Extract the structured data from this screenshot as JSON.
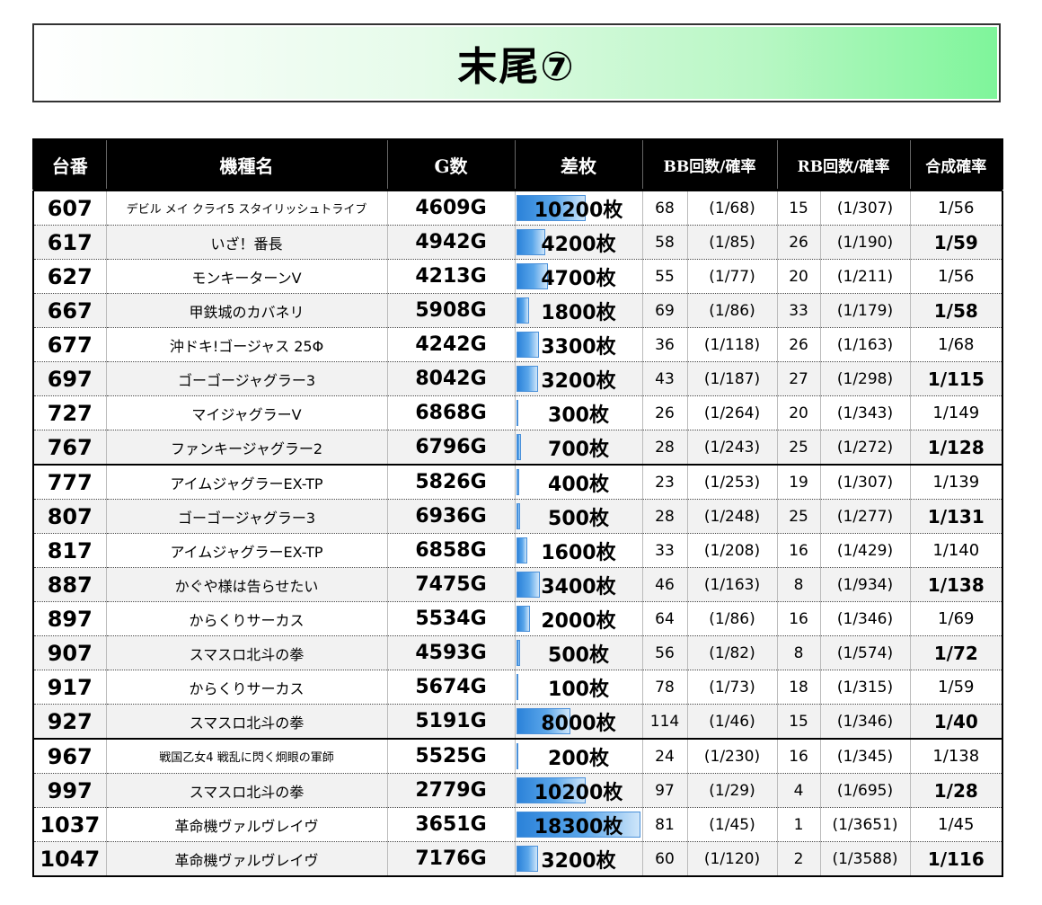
{
  "title": "末尾⑦",
  "headers": {
    "machine_no": "台番",
    "model": "機種名",
    "games": "G数",
    "diff": "差枚",
    "bb": "BB回数/確率",
    "rb": "RB回数/確率",
    "combined": "合成確率"
  },
  "diff_max": 18300,
  "rows": [
    {
      "no": "607",
      "name": "デビル メイ クライ5 スタイリッシュトライブ",
      "games": "4609G",
      "diff": "10200枚",
      "diff_value": 10200,
      "bb": "68",
      "bb_prob": "(1/68)",
      "rb": "15",
      "rb_prob": "(1/307)",
      "combined": "1/56"
    },
    {
      "no": "617",
      "name": "いざ！番長",
      "games": "4942G",
      "diff": "4200枚",
      "diff_value": 4200,
      "bb": "58",
      "bb_prob": "(1/85)",
      "rb": "26",
      "rb_prob": "(1/190)",
      "combined": "1/59"
    },
    {
      "no": "627",
      "name": "モンキーターンV",
      "games": "4213G",
      "diff": "4700枚",
      "diff_value": 4700,
      "bb": "55",
      "bb_prob": "(1/77)",
      "rb": "20",
      "rb_prob": "(1/211)",
      "combined": "1/56"
    },
    {
      "no": "667",
      "name": "甲鉄城のカバネリ",
      "games": "5908G",
      "diff": "1800枚",
      "diff_value": 1800,
      "bb": "69",
      "bb_prob": "(1/86)",
      "rb": "33",
      "rb_prob": "(1/179)",
      "combined": "1/58"
    },
    {
      "no": "677",
      "name": "沖ドキ!ゴージャス 25Φ",
      "games": "4242G",
      "diff": "3300枚",
      "diff_value": 3300,
      "bb": "36",
      "bb_prob": "(1/118)",
      "rb": "26",
      "rb_prob": "(1/163)",
      "combined": "1/68"
    },
    {
      "no": "697",
      "name": "ゴーゴージャグラー3",
      "games": "8042G",
      "diff": "3200枚",
      "diff_value": 3200,
      "bb": "43",
      "bb_prob": "(1/187)",
      "rb": "27",
      "rb_prob": "(1/298)",
      "combined": "1/115"
    },
    {
      "no": "727",
      "name": "マイジャグラーV",
      "games": "6868G",
      "diff": "300枚",
      "diff_value": 300,
      "bb": "26",
      "bb_prob": "(1/264)",
      "rb": "20",
      "rb_prob": "(1/343)",
      "combined": "1/149"
    },
    {
      "no": "767",
      "name": "ファンキージャグラー2",
      "games": "6796G",
      "diff": "700枚",
      "diff_value": 700,
      "bb": "28",
      "bb_prob": "(1/243)",
      "rb": "25",
      "rb_prob": "(1/272)",
      "combined": "1/128"
    },
    {
      "no": "777",
      "name": "アイムジャグラーEX-TP",
      "games": "5826G",
      "diff": "400枚",
      "diff_value": 400,
      "bb": "23",
      "bb_prob": "(1/253)",
      "rb": "19",
      "rb_prob": "(1/307)",
      "combined": "1/139"
    },
    {
      "no": "807",
      "name": "ゴーゴージャグラー3",
      "games": "6936G",
      "diff": "500枚",
      "diff_value": 500,
      "bb": "28",
      "bb_prob": "(1/248)",
      "rb": "25",
      "rb_prob": "(1/277)",
      "combined": "1/131"
    },
    {
      "no": "817",
      "name": "アイムジャグラーEX-TP",
      "games": "6858G",
      "diff": "1600枚",
      "diff_value": 1600,
      "bb": "33",
      "bb_prob": "(1/208)",
      "rb": "16",
      "rb_prob": "(1/429)",
      "combined": "1/140"
    },
    {
      "no": "887",
      "name": "かぐや様は告らせたい",
      "games": "7475G",
      "diff": "3400枚",
      "diff_value": 3400,
      "bb": "46",
      "bb_prob": "(1/163)",
      "rb": "8",
      "rb_prob": "(1/934)",
      "combined": "1/138"
    },
    {
      "no": "897",
      "name": "からくりサーカス",
      "games": "5534G",
      "diff": "2000枚",
      "diff_value": 2000,
      "bb": "64",
      "bb_prob": "(1/86)",
      "rb": "16",
      "rb_prob": "(1/346)",
      "combined": "1/69"
    },
    {
      "no": "907",
      "name": "スマスロ北斗の拳",
      "games": "4593G",
      "diff": "500枚",
      "diff_value": 500,
      "bb": "56",
      "bb_prob": "(1/82)",
      "rb": "8",
      "rb_prob": "(1/574)",
      "combined": "1/72"
    },
    {
      "no": "917",
      "name": "からくりサーカス",
      "games": "5674G",
      "diff": "100枚",
      "diff_value": 100,
      "bb": "78",
      "bb_prob": "(1/73)",
      "rb": "18",
      "rb_prob": "(1/315)",
      "combined": "1/59"
    },
    {
      "no": "927",
      "name": "スマスロ北斗の拳",
      "games": "5191G",
      "diff": "8000枚",
      "diff_value": 8000,
      "bb": "114",
      "bb_prob": "(1/46)",
      "rb": "15",
      "rb_prob": "(1/346)",
      "combined": "1/40"
    },
    {
      "no": "967",
      "name": "戦国乙女4 戦乱に閃く炯眼の軍師",
      "games": "5525G",
      "diff": "200枚",
      "diff_value": 200,
      "bb": "24",
      "bb_prob": "(1/230)",
      "rb": "16",
      "rb_prob": "(1/345)",
      "combined": "1/138"
    },
    {
      "no": "997",
      "name": "スマスロ北斗の拳",
      "games": "2779G",
      "diff": "10200枚",
      "diff_value": 10200,
      "bb": "97",
      "bb_prob": "(1/29)",
      "rb": "4",
      "rb_prob": "(1/695)",
      "combined": "1/28"
    },
    {
      "no": "1037",
      "name": "革命機ヴァルヴレイヴ",
      "games": "3651G",
      "diff": "18300枚",
      "diff_value": 18300,
      "bb": "81",
      "bb_prob": "(1/45)",
      "rb": "1",
      "rb_prob": "(1/3651)",
      "combined": "1/45"
    },
    {
      "no": "1047",
      "name": "革命機ヴァルヴレイヴ",
      "games": "7176G",
      "diff": "3200枚",
      "diff_value": 3200,
      "bb": "60",
      "bb_prob": "(1/120)",
      "rb": "2",
      "rb_prob": "(1/3588)",
      "combined": "1/116"
    }
  ]
}
